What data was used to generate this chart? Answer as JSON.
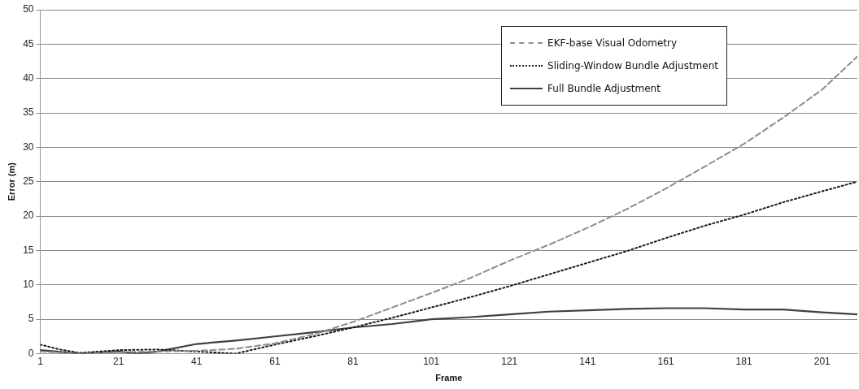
{
  "chart_data": {
    "type": "line",
    "xlabel": "Frame",
    "ylabel": "Error (m)",
    "xlim": [
      1,
      210
    ],
    "xticks": [
      1,
      21,
      41,
      61,
      81,
      101,
      121,
      141,
      161,
      181,
      201
    ],
    "ylim": [
      0,
      50
    ],
    "yticks": [
      0,
      5,
      10,
      15,
      20,
      25,
      30,
      35,
      40,
      45,
      50
    ],
    "grid": "y",
    "legend": "top right",
    "marker": "none",
    "series": [
      {
        "name": "EKF-base Visual Odometry",
        "color": "#8c8c8c",
        "line_style": "dashed",
        "x": [
          1,
          11,
          21,
          31,
          41,
          51,
          61,
          71,
          81,
          91,
          101,
          111,
          121,
          131,
          141,
          151,
          161,
          171,
          181,
          191,
          201,
          210
        ],
        "values": [
          0.3,
          0,
          0.2,
          0.3,
          0.4,
          0.7,
          1.5,
          2.8,
          4.6,
          6.7,
          8.8,
          11.0,
          13.5,
          15.8,
          18.3,
          21.0,
          24.0,
          27.2,
          30.5,
          34.3,
          38.4,
          43.2
        ]
      },
      {
        "name": "Sliding-Window Bundle Adjustment",
        "color": "#1a1a1a",
        "line_style": "dotted",
        "x": [
          1,
          6,
          11,
          21,
          31,
          41,
          51,
          61,
          71,
          81,
          91,
          101,
          111,
          121,
          131,
          141,
          151,
          161,
          171,
          181,
          191,
          201,
          210
        ],
        "values": [
          1.3,
          0.6,
          0.1,
          0.5,
          0.6,
          0.3,
          0,
          1.3,
          2.5,
          3.8,
          5.2,
          6.7,
          8.2,
          9.8,
          11.5,
          13.2,
          14.9,
          16.8,
          18.6,
          20.2,
          22.0,
          23.6,
          25.0
        ]
      },
      {
        "name": "Full Bundle Adjustment",
        "color": "#404040",
        "line_style": "solid",
        "x": [
          1,
          11,
          21,
          26,
          31,
          41,
          51,
          61,
          71,
          81,
          91,
          101,
          111,
          121,
          131,
          141,
          151,
          161,
          171,
          181,
          191,
          201,
          210
        ],
        "values": [
          0.5,
          0,
          0.3,
          0,
          0.3,
          1.4,
          1.9,
          2.5,
          3.1,
          3.8,
          4.3,
          5.0,
          5.3,
          5.7,
          6.1,
          6.3,
          6.5,
          6.6,
          6.6,
          6.4,
          6.4,
          6.0,
          5.7
        ]
      }
    ]
  }
}
